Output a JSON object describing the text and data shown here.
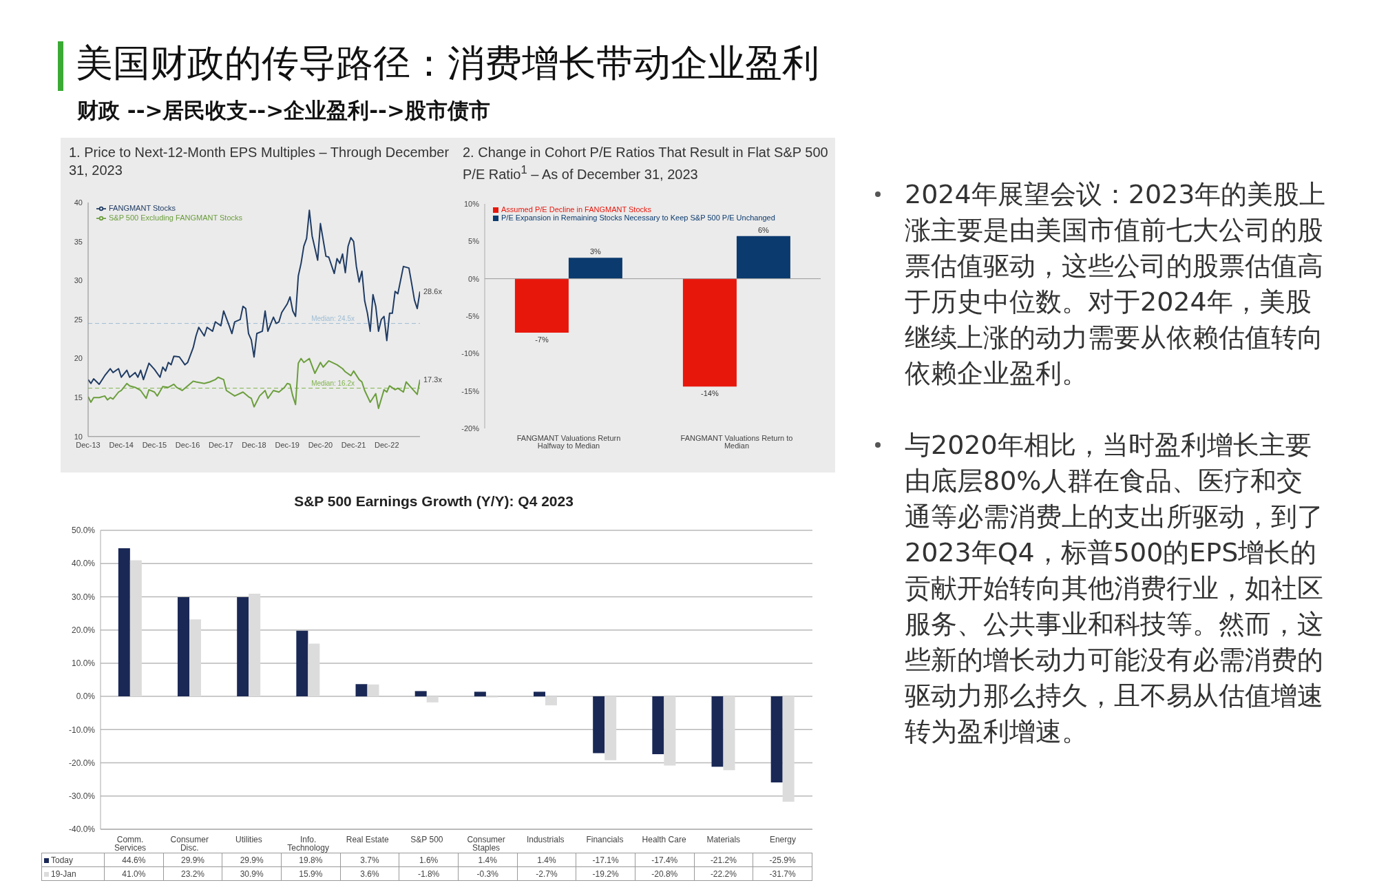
{
  "chart_data": [
    {
      "type": "other",
      "title": "美国财政的传导路径：消费增长带动企业盈利",
      "subtitle": "财政 -->居民收支-->企业盈利-->股市债市",
      "annotations": [
        "2024年展望会议：2023年的美股上涨主要是由美国市值前七大公司的股票估值驱动，这些公司的股票估值高于历史中位数。对于2024年，美股继续上涨的动力需要从依赖估值转向依赖企业盈利。",
        "与2020年相比，当时盈利增长主要由底层80%人群在食品、医疗和交通等必需消费上的支出所驱动，到了2023年Q4，标普500的EPS增长的贡献开始转向其他消费行业，如社区服务、公共事业和科技等。然而，这些新的增长动力可能没有必需消费的驱动力那么持久，且不易从估值增速转为盈利增速。"
      ]
    },
    {
      "type": "line",
      "title": "1. Price to Next-12-Month EPS Multiples – Through December 31, 2023",
      "legend": "top left",
      "xlim": [
        "2013-12",
        "2023-12"
      ],
      "xticks": [
        {
          "value": "2013-12",
          "label": "Dec-13"
        },
        {
          "value": "2014-12",
          "label": "Dec-14"
        },
        {
          "value": "2015-12",
          "label": "Dec-15"
        },
        {
          "value": "2016-12",
          "label": "Dec-16"
        },
        {
          "value": "2017-12",
          "label": "Dec-17"
        },
        {
          "value": "2018-12",
          "label": "Dec-18"
        },
        {
          "value": "2019-12",
          "label": "Dec-19"
        },
        {
          "value": "2020-12",
          "label": "Dec-20"
        },
        {
          "value": "2021-12",
          "label": "Dec-21"
        },
        {
          "value": "2022-12",
          "label": "Dec-22"
        }
      ],
      "ylim": [
        10,
        40
      ],
      "yticks": [
        10,
        15,
        20,
        25,
        30,
        35,
        40
      ],
      "series": [
        {
          "name": "FANGMANT Stocks",
          "color": "#1f3b63",
          "x": [
            "2013-12",
            "2014-01",
            "2014-02",
            "2014-04",
            "2014-06",
            "2014-08",
            "2014-09",
            "2014-11",
            "2014-12",
            "2015-02",
            "2015-03",
            "2015-05",
            "2015-06",
            "2015-07",
            "2015-08",
            "2015-10",
            "2015-12",
            "2016-02",
            "2016-03",
            "2016-04",
            "2016-05",
            "2016-06",
            "2016-07",
            "2016-09",
            "2016-11",
            "2016-12",
            "2017-02",
            "2017-03",
            "2017-04",
            "2017-06",
            "2017-07",
            "2017-09",
            "2017-10",
            "2017-12",
            "2018-01",
            "2018-03",
            "2018-04",
            "2018-05",
            "2018-07",
            "2018-08",
            "2018-09",
            "2018-10",
            "2018-11",
            "2018-12",
            "2019-01",
            "2019-03",
            "2019-04",
            "2019-05",
            "2019-07",
            "2019-08",
            "2019-09",
            "2019-10",
            "2019-12",
            "2020-01",
            "2020-02",
            "2020-03",
            "2020-04",
            "2020-05",
            "2020-06",
            "2020-07",
            "2020-08",
            "2020-09",
            "2020-11",
            "2020-12",
            "2021-02",
            "2021-03",
            "2021-05",
            "2021-06",
            "2021-07",
            "2021-08",
            "2021-09",
            "2021-10",
            "2021-11",
            "2021-12",
            "2022-01",
            "2022-02",
            "2022-03",
            "2022-04",
            "2022-05",
            "2022-06",
            "2022-07",
            "2022-08",
            "2022-09",
            "2022-10",
            "2022-11",
            "2022-12",
            "2023-01",
            "2023-02",
            "2023-03",
            "2023-04",
            "2023-06",
            "2023-08",
            "2023-09",
            "2023-10",
            "2023-11",
            "2023-12"
          ],
          "values": [
            17.3,
            16.8,
            17.4,
            16.7,
            17.8,
            18.7,
            18.2,
            18.7,
            17.6,
            18.5,
            17.6,
            18.2,
            17.6,
            18.5,
            17.3,
            19.4,
            18.6,
            17.6,
            18.9,
            18.4,
            19.5,
            19.2,
            20.3,
            20.2,
            19.2,
            19.5,
            21.4,
            22.9,
            24.0,
            22.9,
            24.0,
            23.5,
            24.7,
            24.2,
            26.1,
            24.2,
            23.2,
            24.7,
            25.0,
            26.7,
            26.4,
            23.2,
            22.4,
            20.2,
            23.2,
            23.5,
            26.1,
            23.5,
            25.3,
            24.5,
            24.7,
            25.9,
            27.0,
            27.9,
            26.1,
            25.4,
            30.6,
            32.2,
            34.4,
            35.4,
            39.0,
            35.7,
            32.6,
            37.3,
            33.1,
            33.0,
            30.9,
            32.8,
            32.2,
            33.4,
            31.0,
            34.4,
            35.5,
            35.0,
            31.8,
            29.8,
            31.2,
            27.4,
            25.8,
            23.5,
            28.2,
            26.7,
            23.5,
            25.0,
            25.4,
            22.3,
            25.8,
            25.8,
            28.6,
            28.3,
            31.8,
            31.6,
            29.6,
            27.5,
            26.4,
            28.6
          ]
        },
        {
          "name": "S&P 500 Excluding FANGMANT Stocks",
          "color": "#6b9e3c",
          "x": [
            "2013-12",
            "2014-01",
            "2014-02",
            "2014-04",
            "2014-06",
            "2014-07",
            "2014-08",
            "2014-09",
            "2014-11",
            "2014-12",
            "2015-02",
            "2015-03",
            "2015-05",
            "2015-07",
            "2015-09",
            "2015-10",
            "2015-12",
            "2016-01",
            "2016-03",
            "2016-05",
            "2016-07",
            "2016-08",
            "2016-10",
            "2016-12",
            "2017-02",
            "2017-03",
            "2017-06",
            "2017-08",
            "2017-10",
            "2017-11",
            "2018-01",
            "2018-02",
            "2018-05",
            "2018-08",
            "2018-10",
            "2018-11",
            "2018-12",
            "2019-02",
            "2019-04",
            "2019-05",
            "2019-07",
            "2019-09",
            "2019-11",
            "2019-12",
            "2020-01",
            "2020-02",
            "2020-03",
            "2020-04",
            "2020-05",
            "2020-06",
            "2020-08",
            "2020-10",
            "2020-12",
            "2021-01",
            "2021-03",
            "2021-06",
            "2021-08",
            "2021-09",
            "2021-11",
            "2021-12",
            "2022-02",
            "2022-03",
            "2022-04",
            "2022-06",
            "2022-08",
            "2022-09",
            "2022-11",
            "2022-12",
            "2023-01",
            "2023-03",
            "2023-04",
            "2023-06",
            "2023-07",
            "2023-09",
            "2023-11",
            "2023-12"
          ],
          "values": [
            15.1,
            14.4,
            15.0,
            15.0,
            15.2,
            14.7,
            15.0,
            14.8,
            15.7,
            15.9,
            16.8,
            16.5,
            16.3,
            15.9,
            14.9,
            16.0,
            15.7,
            15.2,
            16.4,
            16.3,
            16.7,
            16.3,
            15.9,
            16.5,
            17.1,
            17.0,
            16.8,
            17.0,
            17.3,
            17.6,
            17.3,
            15.9,
            15.2,
            15.7,
            15.1,
            14.9,
            13.8,
            15.2,
            15.9,
            14.9,
            15.9,
            15.7,
            16.3,
            16.8,
            16.7,
            15.2,
            14.1,
            19.4,
            20.0,
            19.5,
            20.0,
            18.1,
            19.5,
            18.9,
            19.7,
            19.2,
            18.7,
            18.3,
            17.8,
            18.4,
            17.3,
            17.0,
            15.9,
            14.4,
            15.5,
            13.6,
            16.0,
            15.7,
            16.5,
            16.0,
            16.2,
            15.7,
            17.0,
            16.2,
            15.4,
            17.3
          ]
        }
      ],
      "ref_lines": [
        {
          "axis": "y",
          "value": 24.5,
          "label": "Median: 24.5x",
          "color": "#9dbcd4",
          "line_style": "dashed"
        },
        {
          "axis": "y",
          "value": 16.2,
          "label": "Median: 16.2x",
          "color": "#7fb24a",
          "line_style": "dashed"
        }
      ],
      "annotations": [
        {
          "text": "28.6x",
          "x": "2023-12",
          "y": 28.6
        },
        {
          "text": "17.3x",
          "x": "2023-12",
          "y": 17.3
        }
      ]
    },
    {
      "type": "bar",
      "title": "2. Change in Cohort P/E Ratios That Result in Flat S&P 500 P/E Ratio$^{1}$ – As of December 31, 2023",
      "legend": "top left",
      "categories": [
        "FANGMANT Valuations Return Halfway to Median",
        "FANGMANT Valuations Return to Median"
      ],
      "ylim": [
        -20,
        10
      ],
      "yticks": [
        {
          "value": -20,
          "label": "-20%"
        },
        {
          "value": -15,
          "label": "-15%"
        },
        {
          "value": -10,
          "label": "-10%"
        },
        {
          "value": -5,
          "label": "-5%"
        },
        {
          "value": 0,
          "label": "0%"
        },
        {
          "value": 5,
          "label": "5%"
        },
        {
          "value": 10,
          "label": "10%"
        }
      ],
      "series": [
        {
          "name": "Assumed P/E Decline in FANGMANT Stocks",
          "color": "#e8170c",
          "values": [
            -7.2,
            -14.4
          ],
          "value_labels": [
            "-7%",
            "-14%"
          ]
        },
        {
          "name": "P/E Expansion in Remaining Stocks Necessary to Keep S&P 500 P/E Unchanged",
          "color": "#0b3a6e",
          "values": [
            2.8,
            5.7
          ],
          "value_labels": [
            "3%",
            "6%"
          ]
        }
      ],
      "ref_lines": [
        {
          "axis": "y",
          "value": 0,
          "color": "#999999"
        }
      ]
    },
    {
      "type": "bar",
      "title": "S&P 500 Earnings Growth (Y/Y): Q4 2023",
      "legend": "bottom left",
      "grid": "y",
      "categories": [
        "Comm. Services",
        "Consumer Disc.",
        "Utilities",
        "Info. Technology",
        "Real Estate",
        "S&P 500",
        "Consumer Staples",
        "Industrials",
        "Financials",
        "Health Care",
        "Materials",
        "Energy"
      ],
      "ylim": [
        -40,
        50
      ],
      "yticks": [
        {
          "value": -40,
          "label": "-40.0%"
        },
        {
          "value": -30,
          "label": "-30.0%"
        },
        {
          "value": -20,
          "label": "-20.0%"
        },
        {
          "value": -10,
          "label": "-10.0%"
        },
        {
          "value": 0,
          "label": "0.0%"
        },
        {
          "value": 10,
          "label": "10.0%"
        },
        {
          "value": 20,
          "label": "20.0%"
        },
        {
          "value": 30,
          "label": "30.0%"
        },
        {
          "value": 40,
          "label": "40.0%"
        },
        {
          "value": 50,
          "label": "50.0%"
        }
      ],
      "series": [
        {
          "name": "Today",
          "color": "#1a2856",
          "values": [
            44.6,
            29.9,
            29.9,
            19.8,
            3.7,
            1.6,
            1.4,
            1.4,
            -17.1,
            -17.4,
            -21.2,
            -25.9
          ],
          "value_labels": [
            "44.6%",
            "29.9%",
            "29.9%",
            "19.8%",
            "3.7%",
            "1.6%",
            "1.4%",
            "1.4%",
            "-17.1%",
            "-17.4%",
            "-21.2%",
            "-25.9%"
          ]
        },
        {
          "name": "19-Jan",
          "color": "#dcdcdc",
          "values": [
            41.0,
            23.2,
            30.9,
            15.9,
            3.6,
            -1.8,
            -0.3,
            -2.7,
            -19.2,
            -20.8,
            -22.2,
            -31.7
          ],
          "value_labels": [
            "41.0%",
            "23.2%",
            "30.9%",
            "15.9%",
            "3.6%",
            "-1.8%",
            "-0.3%",
            "-2.7%",
            "-19.2%",
            "-20.8%",
            "-22.2%",
            "-31.7%"
          ]
        }
      ]
    }
  ]
}
